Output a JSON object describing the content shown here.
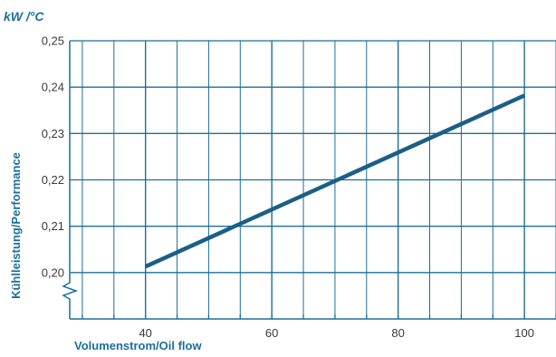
{
  "chart_data": {
    "type": "line",
    "unit_label": "kW /°C",
    "ylabel": "Kühlleistung/Performance",
    "xlabel": "Volumenstrom/Oil flow",
    "x_ticks": [
      40,
      60,
      80,
      100
    ],
    "x_tick_labels": [
      "40",
      "60",
      "80",
      "100"
    ],
    "y_ticks": [
      0.2,
      0.21,
      0.22,
      0.23,
      0.24,
      0.25
    ],
    "y_tick_labels": [
      "0,20",
      "0,21",
      "0,22",
      "0,23",
      "0,24",
      "0,25"
    ],
    "xlim": [
      28,
      105
    ],
    "ylim": [
      0.19,
      0.25
    ],
    "axis_break": "y",
    "grid": true,
    "series": [
      {
        "x": [
          40,
          100
        ],
        "y": [
          0.2013,
          0.2382
        ]
      }
    ],
    "colors": {
      "grid": "#1b6f9b",
      "line": "#1a5f86",
      "text": "#1b6f9b"
    }
  }
}
